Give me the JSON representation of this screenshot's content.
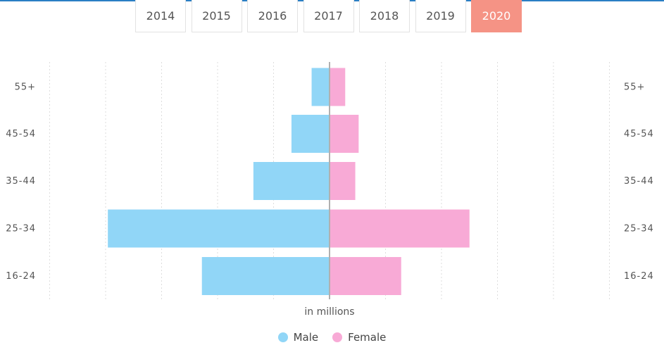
{
  "year_tabs": {
    "items": [
      "2014",
      "2015",
      "2016",
      "2017",
      "2018",
      "2019",
      "2020"
    ],
    "selected": "2020"
  },
  "chart_data": {
    "type": "bar",
    "orientation": "horizontal-pyramid",
    "categories": [
      "55+",
      "45-54",
      "35-44",
      "25-34",
      "16-24"
    ],
    "series": [
      {
        "name": "Male",
        "values": [
          1.6,
          3.4,
          6.8,
          19.8,
          11.4
        ],
        "color": "#91d6f7"
      },
      {
        "name": "Female",
        "values": [
          1.4,
          2.6,
          2.3,
          12.5,
          6.4
        ],
        "color": "#f8aad6"
      }
    ],
    "xlabel": "in millions",
    "xlim": [
      -25,
      25
    ],
    "grid": true,
    "legend_position": "bottom-center"
  }
}
